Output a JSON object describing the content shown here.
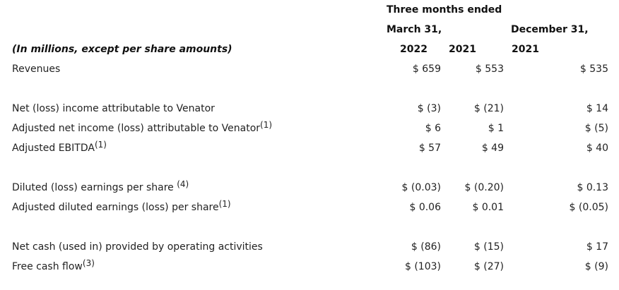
{
  "header": {
    "group": "Three months ended",
    "mar": "March 31,",
    "dec": "December 31,",
    "y2022": "2022",
    "y2021a": "2021",
    "y2021b": "2021",
    "caption": "(In millions, except per share amounts)"
  },
  "rows": [
    {
      "label": "Revenues",
      "note": "",
      "v1": "$ 659",
      "v2": "$ 553",
      "v3": "$ 535"
    },
    {
      "label": "Net (loss) income attributable to Venator",
      "note": "",
      "v1": "$ (3)",
      "v2": "$ (21)",
      "v3": "$ 14"
    },
    {
      "label": "Adjusted net income (loss) attributable to Venator",
      "note": "(1)",
      "v1": "$ 6",
      "v2": "$ 1",
      "v3": "$ (5)"
    },
    {
      "label": "Adjusted EBITDA",
      "note": "(1)",
      "v1": "$ 57",
      "v2": "$ 49",
      "v3": "$ 40"
    },
    {
      "label": "Diluted (loss) earnings per share ",
      "note": "(4)",
      "v1": "$ (0.03)",
      "v2": "$ (0.20)",
      "v3": "$ 0.13"
    },
    {
      "label": "Adjusted diluted earnings (loss) per share",
      "note": "(1)",
      "v1": "$ 0.06",
      "v2": "$ 0.01",
      "v3": "$ (0.05)"
    },
    {
      "label": "Net cash (used in) provided by operating activities",
      "note": "",
      "v1": "$ (86)",
      "v2": "$ (15)",
      "v3": "$ 17"
    },
    {
      "label": "Free cash flow",
      "note": "(3)",
      "v1": "$ (103)",
      "v2": "$ (27)",
      "v3": "$ (9)"
    }
  ]
}
